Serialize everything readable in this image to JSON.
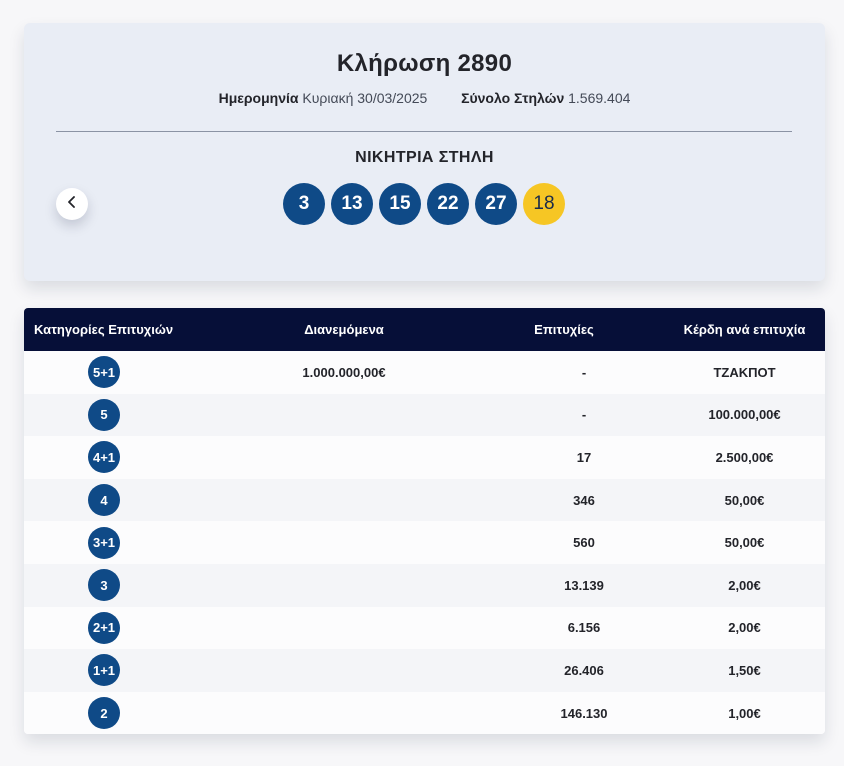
{
  "draw": {
    "title": "Κλήρωση 2890",
    "date_label": "Ημερομηνία",
    "date_value": "Κυριακή 30/03/2025",
    "columns_label": "Σύνολο Στηλών",
    "columns_value": "1.569.404",
    "winning_title": "ΝΙΚΗΤΡΙΑ ΣΤΗΛΗ",
    "numbers": [
      "3",
      "13",
      "15",
      "22",
      "27"
    ],
    "joker": "18"
  },
  "table": {
    "headers": {
      "category": "Κατηγορίες Επιτυχιών",
      "distributed": "Διανεμόμενα",
      "winners": "Επιτυχίες",
      "prize": "Κέρδη ανά επιτυχία"
    },
    "rows": [
      {
        "category": "5+1",
        "distributed": "1.000.000,00€",
        "winners": "-",
        "prize": "ΤΖΑΚΠΟΤ"
      },
      {
        "category": "5",
        "distributed": "",
        "winners": "-",
        "prize": "100.000,00€"
      },
      {
        "category": "4+1",
        "distributed": "",
        "winners": "17",
        "prize": "2.500,00€"
      },
      {
        "category": "4",
        "distributed": "",
        "winners": "346",
        "prize": "50,00€"
      },
      {
        "category": "3+1",
        "distributed": "",
        "winners": "560",
        "prize": "50,00€"
      },
      {
        "category": "3",
        "distributed": "",
        "winners": "13.139",
        "prize": "2,00€"
      },
      {
        "category": "2+1",
        "distributed": "",
        "winners": "6.156",
        "prize": "2,00€"
      },
      {
        "category": "1+1",
        "distributed": "",
        "winners": "26.406",
        "prize": "1,50€"
      },
      {
        "category": "2",
        "distributed": "",
        "winners": "146.130",
        "prize": "1,00€"
      }
    ]
  },
  "colors": {
    "ball": "#0f4a87",
    "joker_ball": "#f6c624",
    "table_header": "#060f38"
  }
}
